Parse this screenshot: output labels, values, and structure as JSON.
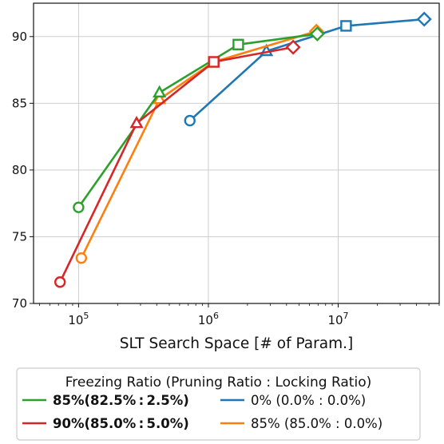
{
  "chart_data": {
    "type": "line",
    "xlabel": "SLT Search Space [# of Param.]",
    "ylabel": "",
    "xscale": "log",
    "xlim": [
      45000,
      60000000
    ],
    "ylim": [
      70,
      92.5
    ],
    "x_ticks": [
      {
        "value": 100000,
        "base": "10",
        "exp": "5"
      },
      {
        "value": 1000000,
        "base": "10",
        "exp": "6"
      },
      {
        "value": 10000000,
        "base": "10",
        "exp": "7"
      }
    ],
    "y_ticks": [
      70,
      75,
      80,
      85,
      90
    ],
    "grid": true,
    "legend": {
      "title": "Freezing Ratio (Pruning Ratio : Locking Ratio)",
      "placement": "below"
    },
    "marker_order": [
      "circle",
      "triangle",
      "square",
      "diamond"
    ],
    "series": [
      {
        "name": "0% (0.0% : 0.0%)",
        "color": "#1f77b4",
        "bold": false,
        "x": [
          720000,
          2800000,
          11500000,
          46000000
        ],
        "y": [
          83.7,
          88.9,
          90.8,
          91.3
        ]
      },
      {
        "name": "85% (85.0% : 0.0%)",
        "color": "#ff7f0e",
        "bold": false,
        "x": [
          105000,
          420000,
          1100000,
          6800000
        ],
        "y": [
          73.4,
          85.3,
          88.1,
          90.4
        ]
      },
      {
        "name": "85%(82.5% : 2.5%)",
        "color": "#2ca02c",
        "bold": true,
        "x": [
          100000,
          420000,
          1700000,
          6900000
        ],
        "y": [
          77.2,
          85.8,
          89.4,
          90.2
        ]
      },
      {
        "name": "90%(85.0% : 5.0%)",
        "color": "#d62728",
        "bold": true,
        "x": [
          72000,
          280000,
          1100000,
          4500000
        ],
        "y": [
          71.6,
          83.5,
          88.1,
          89.2
        ]
      }
    ],
    "legend_layout": [
      [
        2,
        0
      ],
      [
        3,
        1
      ]
    ]
  }
}
